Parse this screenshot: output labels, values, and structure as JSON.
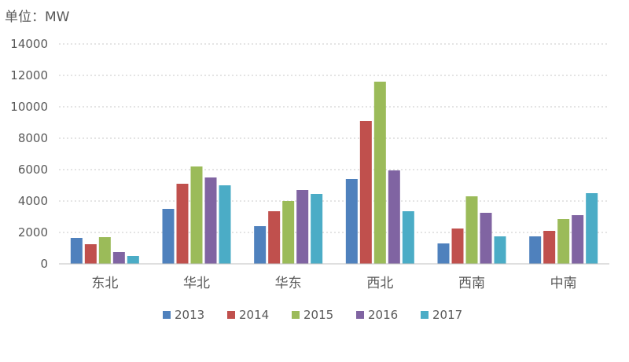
{
  "chart_data": {
    "type": "bar",
    "unit_label": "单位：MW",
    "categories": [
      "东北",
      "华北",
      "华东",
      "西北",
      "西南",
      "中南"
    ],
    "series": [
      {
        "name": "2013",
        "color": "#4f81bd",
        "values": [
          1650,
          3500,
          2400,
          5400,
          1300,
          1750
        ]
      },
      {
        "name": "2014",
        "color": "#c0504d",
        "values": [
          1250,
          5100,
          3350,
          9100,
          2250,
          2100
        ]
      },
      {
        "name": "2015",
        "color": "#9bbb59",
        "values": [
          1700,
          6200,
          4000,
          11600,
          4300,
          2850
        ]
      },
      {
        "name": "2016",
        "color": "#8064a2",
        "values": [
          750,
          5500,
          4700,
          5950,
          3250,
          3100
        ]
      },
      {
        "name": "2017",
        "color": "#4bacc6",
        "values": [
          500,
          5000,
          4450,
          3350,
          1750,
          4500
        ]
      }
    ],
    "ylim": [
      0,
      14000
    ],
    "yticks": [
      0,
      2000,
      4000,
      6000,
      8000,
      10000,
      12000,
      14000
    ],
    "grid": true,
    "legend_position": "bottom"
  }
}
